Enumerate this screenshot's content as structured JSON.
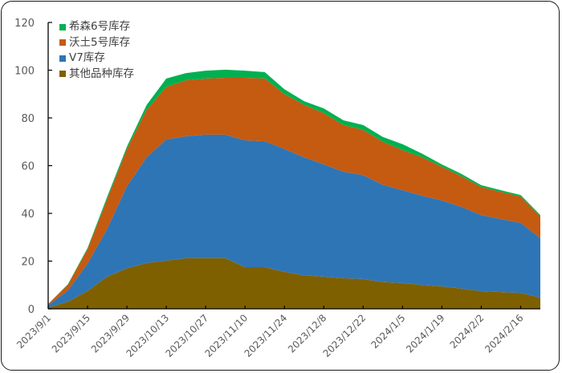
{
  "chart_data": {
    "type": "area",
    "stacked": true,
    "title": "",
    "xlabel": "",
    "ylabel": "",
    "ylim": [
      0,
      120
    ],
    "yticks": [
      0,
      20,
      40,
      60,
      80,
      100,
      120
    ],
    "grid": false,
    "legend_position": "top-left (inside)",
    "x": [
      "2023/9/1",
      "2023/9/8",
      "2023/9/15",
      "2023/9/22",
      "2023/9/29",
      "2023/10/6",
      "2023/10/13",
      "2023/10/20",
      "2023/10/27",
      "2023/11/3",
      "2023/11/10",
      "2023/11/17",
      "2023/11/24",
      "2023/12/1",
      "2023/12/8",
      "2023/12/15",
      "2023/12/22",
      "2023/12/29",
      "2024/1/5",
      "2024/1/12",
      "2024/1/19",
      "2024/1/26",
      "2024/2/2",
      "2024/2/9",
      "2024/2/16",
      "2024/2/23"
    ],
    "xtick_labels": [
      "2023/9/1",
      "2023/9/15",
      "2023/9/29",
      "2023/10/13",
      "2023/10/27",
      "2023/11/10",
      "2023/11/24",
      "2023/12/8",
      "2023/12/22",
      "2024/1/5",
      "2024/1/19",
      "2024/2/2",
      "2024/2/16"
    ],
    "series": [
      {
        "name": "其他品种库存",
        "color": "#7F6000",
        "values": [
          0.5,
          3,
          7.5,
          13.5,
          17,
          19.2,
          20.2,
          21.2,
          21.2,
          21.2,
          17.5,
          17.5,
          15.5,
          14,
          13.5,
          12.8,
          12.5,
          11.2,
          10.8,
          10,
          9.4,
          8.5,
          7.4,
          7,
          6.7,
          4.7
        ]
      },
      {
        "name": "V7库存",
        "color": "#2E75B6",
        "values": [
          1,
          4.7,
          11.5,
          20.1,
          34.4,
          44.3,
          50.8,
          51.1,
          51.8,
          51.8,
          53.1,
          52.7,
          51.5,
          49.5,
          47,
          44.7,
          43.5,
          40.8,
          38.9,
          37.4,
          36,
          34.2,
          31.9,
          30.6,
          29.3,
          24.9
        ]
      },
      {
        "name": "沃土5号库存",
        "color": "#C55A11",
        "values": [
          0.5,
          2.3,
          6,
          12.4,
          15.6,
          19.9,
          22,
          23.5,
          23.5,
          23.8,
          26.2,
          26.3,
          23,
          22,
          21.5,
          19.5,
          19,
          18,
          16.8,
          16.1,
          14.1,
          12.8,
          11.7,
          11.4,
          11,
          9.1
        ]
      },
      {
        "name": "希森6号库存",
        "color": "#00B050",
        "values": [
          0,
          0.3,
          0.5,
          1,
          1,
          2,
          3.5,
          3,
          3.3,
          3.4,
          3,
          2.7,
          2,
          1.5,
          2,
          2,
          2,
          2,
          2.5,
          1.5,
          1,
          1,
          0.8,
          0.7,
          0.7,
          0.6
        ]
      }
    ]
  },
  "legend": {
    "items": [
      {
        "label": "希森6号库存",
        "color": "#00B050"
      },
      {
        "label": "沃土5号库存",
        "color": "#C55A11"
      },
      {
        "label": "V7库存",
        "color": "#2E75B6"
      },
      {
        "label": "其他品种库存",
        "color": "#7F6000"
      }
    ]
  }
}
